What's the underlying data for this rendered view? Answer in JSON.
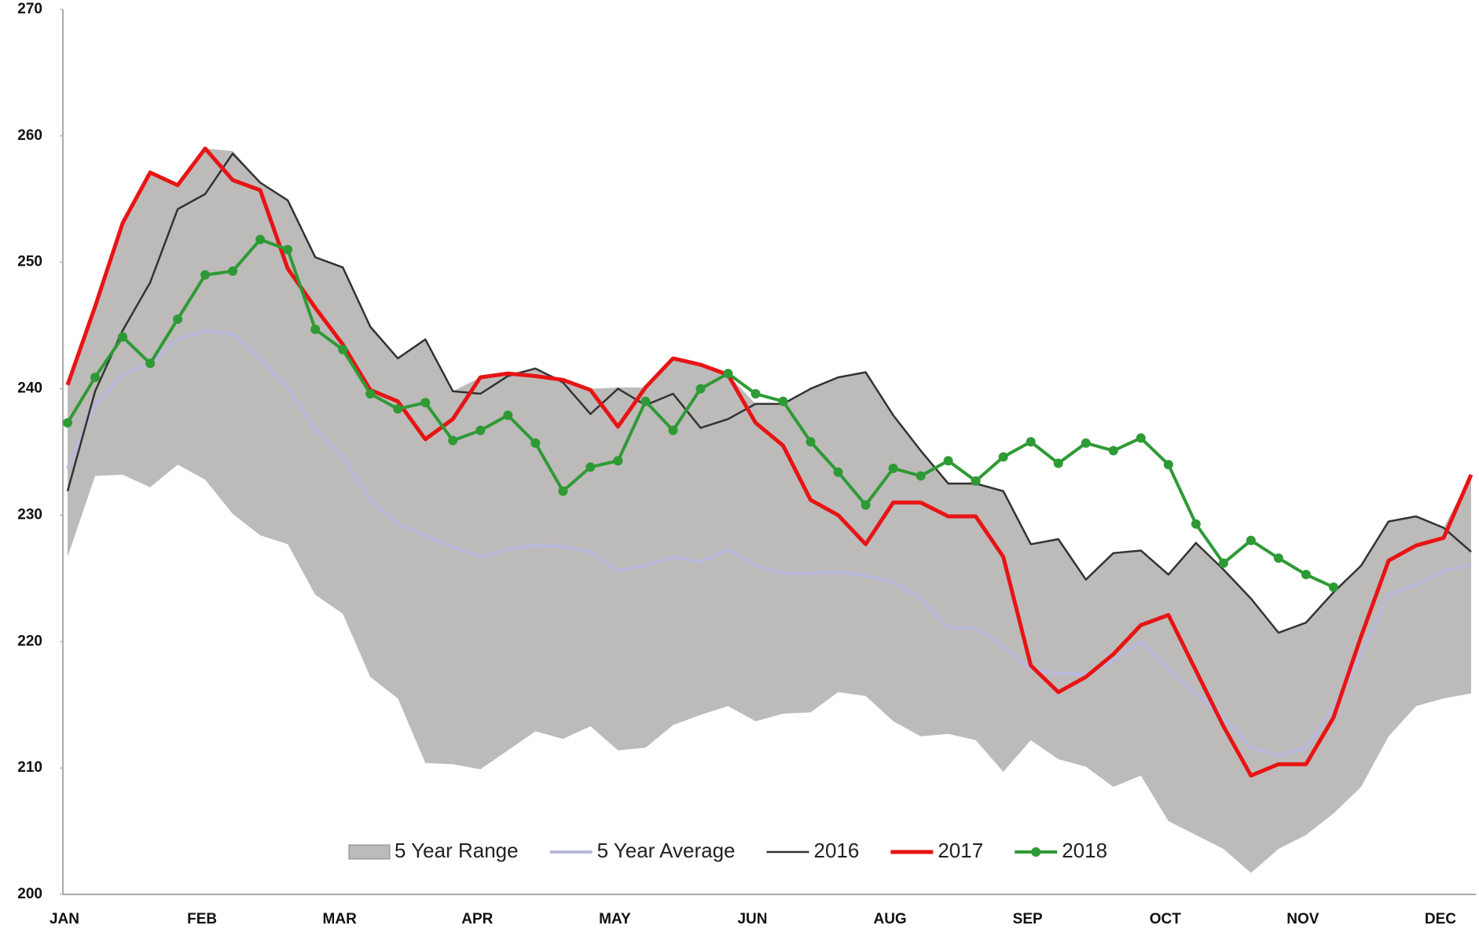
{
  "chart_data": {
    "type": "line",
    "categories": [
      "JAN",
      null,
      null,
      null,
      null,
      "FEB",
      null,
      null,
      null,
      null,
      "MAR",
      null,
      null,
      null,
      null,
      "APR",
      null,
      null,
      null,
      null,
      "MAY",
      null,
      null,
      null,
      null,
      "JUN",
      null,
      null,
      null,
      null,
      "AUG",
      null,
      null,
      null,
      null,
      "SEP",
      null,
      null,
      null,
      null,
      "OCT",
      null,
      null,
      null,
      null,
      "NOV",
      null,
      null,
      null,
      null,
      "DEC",
      null
    ],
    "ylim": [
      200,
      270
    ],
    "yticks": [
      200,
      210,
      220,
      230,
      240,
      250,
      260,
      270
    ],
    "legend": "bottom",
    "range": {
      "name": "5 Year Range",
      "color": "#bdbaba",
      "high": [
        240.3,
        246.5,
        253.1,
        257.1,
        256.1,
        259.0,
        258.8,
        256.3,
        254.9,
        250.4,
        249.6,
        244.9,
        242.4,
        243.9,
        239.8,
        240.9,
        241.2,
        241.6,
        240.7,
        240.0,
        240.1,
        240.1,
        242.4,
        241.9,
        241.1,
        238.8,
        238.8,
        240.0,
        240.9,
        241.3,
        237.9,
        235.1,
        232.5,
        232.5,
        231.9,
        227.7,
        228.1,
        224.9,
        227.0,
        227.2,
        225.3,
        227.8,
        225.7,
        223.4,
        220.7,
        221.5,
        223.9,
        226.0,
        229.5,
        229.9,
        229.0,
        233.2
      ],
      "low": [
        226.7,
        233.1,
        233.2,
        232.2,
        234.0,
        232.8,
        230.1,
        228.4,
        227.7,
        223.7,
        222.2,
        217.2,
        215.5,
        210.4,
        210.3,
        209.9,
        211.4,
        212.9,
        212.3,
        213.3,
        211.4,
        211.6,
        213.4,
        214.2,
        214.9,
        213.7,
        214.3,
        214.4,
        216.0,
        215.7,
        213.7,
        212.5,
        212.7,
        212.2,
        209.7,
        212.2,
        210.7,
        210.1,
        208.5,
        209.4,
        205.8,
        204.7,
        203.6,
        201.7,
        203.6,
        204.7,
        206.4,
        208.5,
        212.5,
        214.9,
        215.5,
        215.9
      ]
    },
    "series": [
      {
        "name": "5 Year Average",
        "color": "#b9b9dc",
        "values": [
          233.7,
          238.7,
          241.1,
          242.0,
          243.9,
          244.6,
          244.3,
          242.4,
          240.1,
          236.8,
          234.6,
          231.2,
          229.3,
          228.4,
          227.5,
          226.7,
          227.3,
          227.6,
          227.5,
          227.1,
          225.6,
          226.0,
          226.7,
          226.3,
          227.3,
          226.0,
          225.4,
          225.4,
          225.5,
          225.2,
          224.7,
          223.4,
          221.1,
          221.1,
          219.6,
          217.8,
          217.5,
          217.4,
          218.5,
          220.0,
          217.8,
          215.9,
          214.0,
          211.6,
          211.0,
          211.6,
          214.8,
          218.9,
          223.7,
          224.5,
          225.6,
          226.1
        ]
      },
      {
        "name": "2016",
        "color": "#333333",
        "values": [
          231.9,
          239.8,
          244.6,
          248.4,
          254.2,
          255.4,
          258.6,
          256.3,
          254.9,
          250.4,
          249.6,
          244.9,
          242.4,
          243.9,
          239.8,
          239.6,
          241.0,
          241.6,
          240.5,
          238.0,
          240.0,
          238.7,
          239.6,
          236.9,
          237.6,
          238.8,
          238.8,
          240.0,
          240.9,
          241.3,
          237.9,
          235.1,
          232.5,
          232.5,
          231.9,
          227.7,
          228.1,
          224.9,
          227.0,
          227.2,
          225.3,
          227.8,
          225.7,
          223.4,
          220.7,
          221.5,
          223.9,
          226.0,
          229.5,
          229.9,
          229.0,
          227.1
        ]
      },
      {
        "name": "2017",
        "color": "#e81414",
        "values": [
          240.3,
          246.5,
          253.1,
          257.1,
          256.1,
          259.0,
          256.5,
          255.7,
          249.5,
          246.4,
          243.5,
          239.9,
          239.0,
          236.0,
          237.6,
          240.9,
          241.2,
          241.0,
          240.7,
          239.9,
          237.0,
          240.1,
          242.4,
          241.9,
          241.1,
          237.3,
          235.5,
          231.2,
          230.0,
          227.7,
          231.0,
          231.0,
          229.9,
          229.9,
          226.7,
          218.1,
          216.0,
          217.2,
          219.0,
          221.3,
          222.1,
          217.7,
          213.3,
          209.4,
          210.3,
          210.3,
          214.0,
          220.4,
          226.4,
          227.6,
          228.2,
          233.2
        ]
      },
      {
        "name": "2018",
        "color": "#2e9a35",
        "markers": true,
        "values": [
          237.3,
          240.9,
          244.1,
          242.0,
          245.5,
          249.0,
          249.3,
          251.8,
          251.0,
          244.7,
          243.1,
          239.6,
          238.4,
          238.9,
          235.9,
          236.7,
          237.9,
          235.7,
          231.9,
          233.8,
          234.3,
          239.0,
          236.7,
          240.0,
          241.2,
          239.6,
          239.0,
          235.8,
          233.4,
          230.8,
          233.7,
          233.1,
          234.3,
          232.7,
          234.6,
          235.8,
          234.1,
          235.7,
          235.1,
          236.1,
          234.0,
          229.3,
          226.2,
          228.0,
          226.6,
          225.3,
          224.3,
          null,
          null,
          null,
          null,
          null
        ]
      }
    ]
  }
}
